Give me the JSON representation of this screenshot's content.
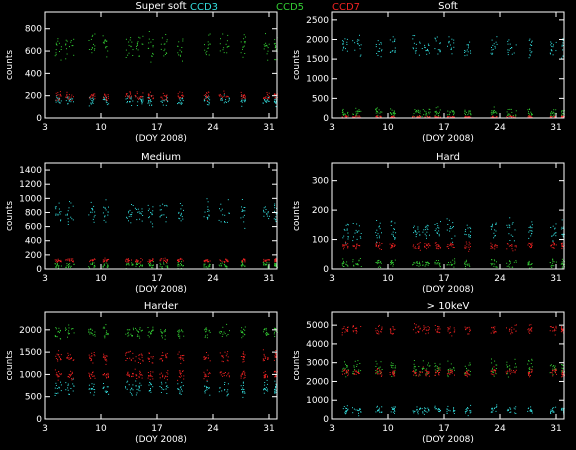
{
  "legend": [
    {
      "label": "CCD3",
      "color": "#33dddd"
    },
    {
      "label": "CCD5",
      "color": "#33cc33"
    },
    {
      "label": "CCD7",
      "color": "#ee2222"
    }
  ],
  "colors": {
    "background": "#000000",
    "axes": "#ffffff",
    "text": "#ffffff"
  },
  "chart_data": [
    {
      "type": "scatter",
      "title": "Super soft",
      "xlabel": "(DOY 2008)",
      "ylabel": "counts",
      "xlim": [
        3,
        32
      ],
      "ylim": [
        0,
        950
      ],
      "xticks": [
        3,
        10,
        17,
        24,
        31
      ],
      "yticks": [
        0,
        200,
        400,
        600,
        800
      ],
      "series": [
        {
          "name": "CCD3",
          "color": "#33dddd",
          "bands": [
            [
              160,
              30
            ]
          ]
        },
        {
          "name": "CCD5",
          "color": "#33cc33",
          "bands": [
            [
              650,
              80
            ]
          ]
        },
        {
          "name": "CCD7",
          "color": "#ee2222",
          "bands": [
            [
              200,
              25
            ]
          ]
        }
      ]
    },
    {
      "type": "scatter",
      "title": "Soft",
      "xlabel": "(DOY 2008)",
      "ylabel": "counts",
      "xlim": [
        3,
        32
      ],
      "ylim": [
        0,
        2700
      ],
      "xticks": [
        3,
        10,
        17,
        24,
        31
      ],
      "yticks": [
        0,
        500,
        1000,
        1500,
        2000,
        2500
      ],
      "series": [
        {
          "name": "CCD3",
          "color": "#33dddd",
          "bands": [
            [
              1800,
              200
            ]
          ]
        },
        {
          "name": "CCD5",
          "color": "#33cc33",
          "bands": [
            [
              150,
              80
            ]
          ]
        },
        {
          "name": "CCD7",
          "color": "#ee2222",
          "bands": [
            [
              40,
              20
            ]
          ]
        }
      ]
    },
    {
      "type": "scatter",
      "title": "Medium",
      "xlabel": "(DOY 2008)",
      "ylabel": "counts",
      "xlim": [
        3,
        32
      ],
      "ylim": [
        0,
        1500
      ],
      "xticks": [
        3,
        10,
        17,
        24,
        31
      ],
      "yticks": [
        0,
        200,
        400,
        600,
        800,
        1000,
        1200,
        1400
      ],
      "series": [
        {
          "name": "CCD3",
          "color": "#33dddd",
          "bands": [
            [
              800,
              120
            ]
          ]
        },
        {
          "name": "CCD5",
          "color": "#33cc33",
          "bands": [
            [
              60,
              30
            ]
          ]
        },
        {
          "name": "CCD7",
          "color": "#ee2222",
          "bands": [
            [
              130,
              20
            ]
          ]
        }
      ]
    },
    {
      "type": "scatter",
      "title": "Hard",
      "xlabel": "(DOY 2008)",
      "ylabel": "counts",
      "xlim": [
        3,
        32
      ],
      "ylim": [
        0,
        360
      ],
      "xticks": [
        3,
        10,
        17,
        24,
        31
      ],
      "yticks": [
        0,
        100,
        200,
        300
      ],
      "series": [
        {
          "name": "CCD3",
          "color": "#33dddd",
          "bands": [
            [
              130,
              25
            ]
          ]
        },
        {
          "name": "CCD5",
          "color": "#33cc33",
          "bands": [
            [
              20,
              10
            ]
          ]
        },
        {
          "name": "CCD7",
          "color": "#ee2222",
          "bands": [
            [
              80,
              10
            ]
          ]
        }
      ]
    },
    {
      "type": "scatter",
      "title": "Harder",
      "xlabel": "(DOY 2008)",
      "ylabel": "counts",
      "xlim": [
        3,
        32
      ],
      "ylim": [
        0,
        2400
      ],
      "xticks": [
        3,
        10,
        17,
        24,
        31
      ],
      "yticks": [
        0,
        500,
        1000,
        1500,
        2000
      ],
      "series": [
        {
          "name": "CCD3",
          "color": "#33dddd",
          "bands": [
            [
              700,
              120
            ]
          ]
        },
        {
          "name": "CCD5",
          "color": "#33cc33",
          "bands": [
            [
              1950,
              100
            ]
          ]
        },
        {
          "name": "CCD7",
          "color": "#ee2222",
          "bands": [
            [
              1400,
              90
            ],
            [
              1000,
              70
            ]
          ]
        }
      ]
    },
    {
      "type": "scatter",
      "title": "> 10keV",
      "xlabel": "(DOY 2008)",
      "ylabel": "counts",
      "xlim": [
        3,
        32
      ],
      "ylim": [
        0,
        5700
      ],
      "xticks": [
        3,
        10,
        17,
        24,
        31
      ],
      "yticks": [
        0,
        1000,
        2000,
        3000,
        4000,
        5000
      ],
      "series": [
        {
          "name": "CCD3",
          "color": "#33dddd",
          "bands": [
            [
              500,
              150
            ]
          ]
        },
        {
          "name": "CCD5",
          "color": "#33cc33",
          "bands": [
            [
              2700,
              300
            ]
          ]
        },
        {
          "name": "CCD7",
          "color": "#ee2222",
          "bands": [
            [
              4800,
              200
            ],
            [
              2500,
              150
            ]
          ]
        }
      ]
    }
  ]
}
